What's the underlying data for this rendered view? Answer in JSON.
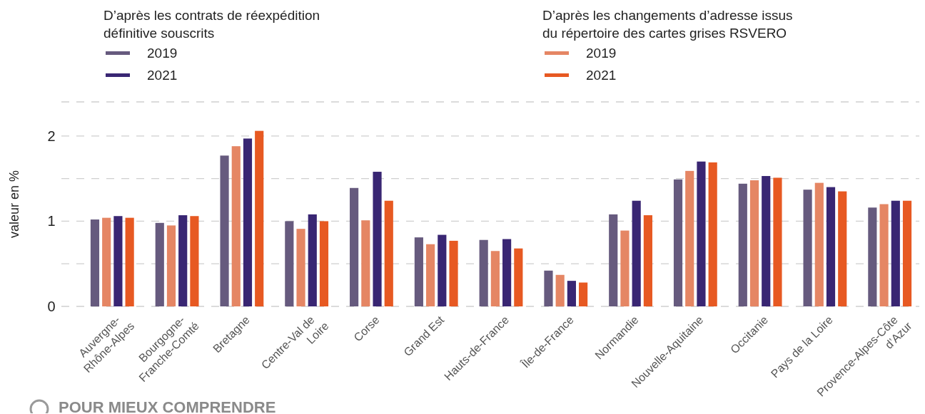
{
  "chart_data": {
    "type": "bar",
    "ylabel": "valeur en %",
    "categories": [
      "Auvergne-Rhône-Alpes",
      "Bourgogne-Franche-Comté",
      "Bretagne",
      "Centre-Val de Loire",
      "Corse",
      "Grand Est",
      "Hauts-de-France",
      "Île-de-France",
      "Normandie",
      "Nouvelle-Aquitaine",
      "Occitanie",
      "Pays de la Loire",
      "Provence-Alpes-Côte d’Azur"
    ],
    "series": [
      {
        "name": "2019",
        "color": "#665a7e",
        "values": [
          1.02,
          0.98,
          1.77,
          1.0,
          1.39,
          0.81,
          0.78,
          0.42,
          1.08,
          1.49,
          1.44,
          1.37,
          1.16
        ]
      },
      {
        "name": "2019",
        "color": "#e58664",
        "values": [
          1.04,
          0.95,
          1.88,
          0.91,
          1.01,
          0.73,
          0.65,
          0.37,
          0.89,
          1.59,
          1.48,
          1.45,
          1.2
        ]
      },
      {
        "name": "2021",
        "color": "#392673",
        "values": [
          1.06,
          1.07,
          1.97,
          1.08,
          1.58,
          0.84,
          0.79,
          0.3,
          1.24,
          1.7,
          1.53,
          1.4,
          1.24
        ]
      },
      {
        "name": "2021",
        "color": "#e75922",
        "values": [
          1.04,
          1.06,
          2.06,
          1.0,
          1.24,
          0.77,
          0.68,
          0.28,
          1.07,
          1.69,
          1.51,
          1.35,
          1.24
        ]
      }
    ],
    "ylim": [
      0,
      2.4
    ],
    "yticks": [
      0,
      {
        "value": 0.5,
        "label": null
      },
      1,
      {
        "value": 1.5,
        "label": null
      },
      2,
      {
        "value": 2.4,
        "label": null
      }
    ],
    "grid": "y",
    "legend": "top",
    "annotations": [
      "D’après les contrats de réexpédition définitive souscrits",
      "D’après les changements d’adresse issus du répertoire des cartes grises RSVERO",
      "POUR MIEUX COMPRENDRE"
    ]
  }
}
